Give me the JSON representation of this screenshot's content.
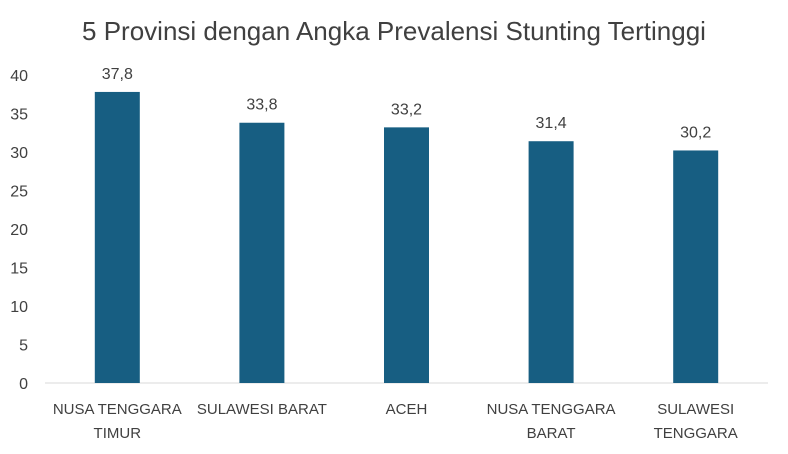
{
  "chart_data": {
    "type": "bar",
    "title": "5 Provinsi dengan Angka Prevalensi Stunting Tertinggi",
    "categories": [
      [
        "NUSA TENGGARA",
        "TIMUR"
      ],
      [
        "SULAWESI BARAT"
      ],
      [
        "ACEH"
      ],
      [
        "NUSA TENGGARA",
        "BARAT"
      ],
      [
        "SULAWESI",
        "TENGGARA"
      ]
    ],
    "values": [
      37.8,
      33.8,
      33.2,
      31.4,
      30.2
    ],
    "data_labels": [
      "37,8",
      "33,8",
      "33,2",
      "31,4",
      "30,2"
    ],
    "ylim": [
      0,
      40
    ],
    "yticks": [
      0,
      5,
      10,
      15,
      20,
      25,
      30,
      35,
      40
    ],
    "grid": false,
    "legend": "none",
    "bar_color": "#175E82",
    "axis_color": "#D9D9D9"
  }
}
